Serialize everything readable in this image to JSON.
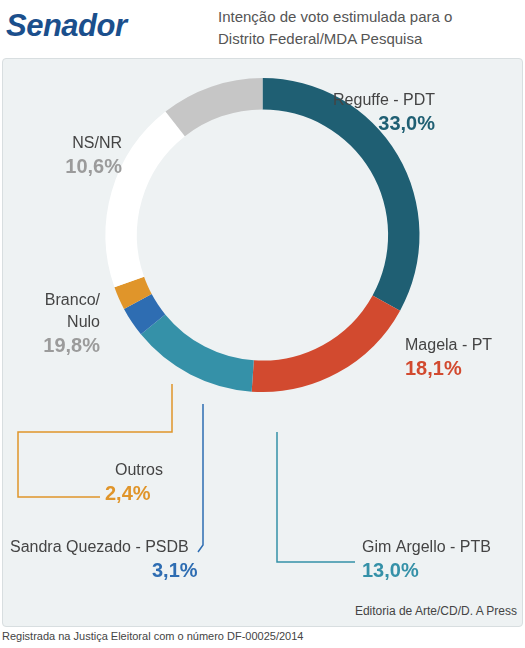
{
  "chart_data": {
    "type": "doughnut",
    "title": "Senador",
    "subtitle": "Intenção de voto estimulada para o Distrito Federal/MDA Pesquisa",
    "categories": [
      "Reguffe - PDT",
      "Magela - PT",
      "Gim Argello - PTB",
      "Sandra Quezado - PSDB",
      "Outros",
      "Branco/Nulo",
      "NS/NR"
    ],
    "values": [
      33.0,
      18.1,
      13.0,
      3.1,
      2.4,
      19.8,
      10.6
    ],
    "value_labels": [
      "33,0%",
      "18,1%",
      "13,0%",
      "3,1%",
      "2,4%",
      "19,8%",
      "10,6%"
    ],
    "colors": [
      "#1f5f73",
      "#d24a2f",
      "#3591a8",
      "#2e6db2",
      "#e0952a",
      "#ffffff",
      "#c6c6c6"
    ],
    "data_labels": true,
    "source": "Editoria de Arte/CD/D. A Press",
    "footnote": "Registrada na Justiça Eleitoral com o número DF-00025/2014"
  }
}
